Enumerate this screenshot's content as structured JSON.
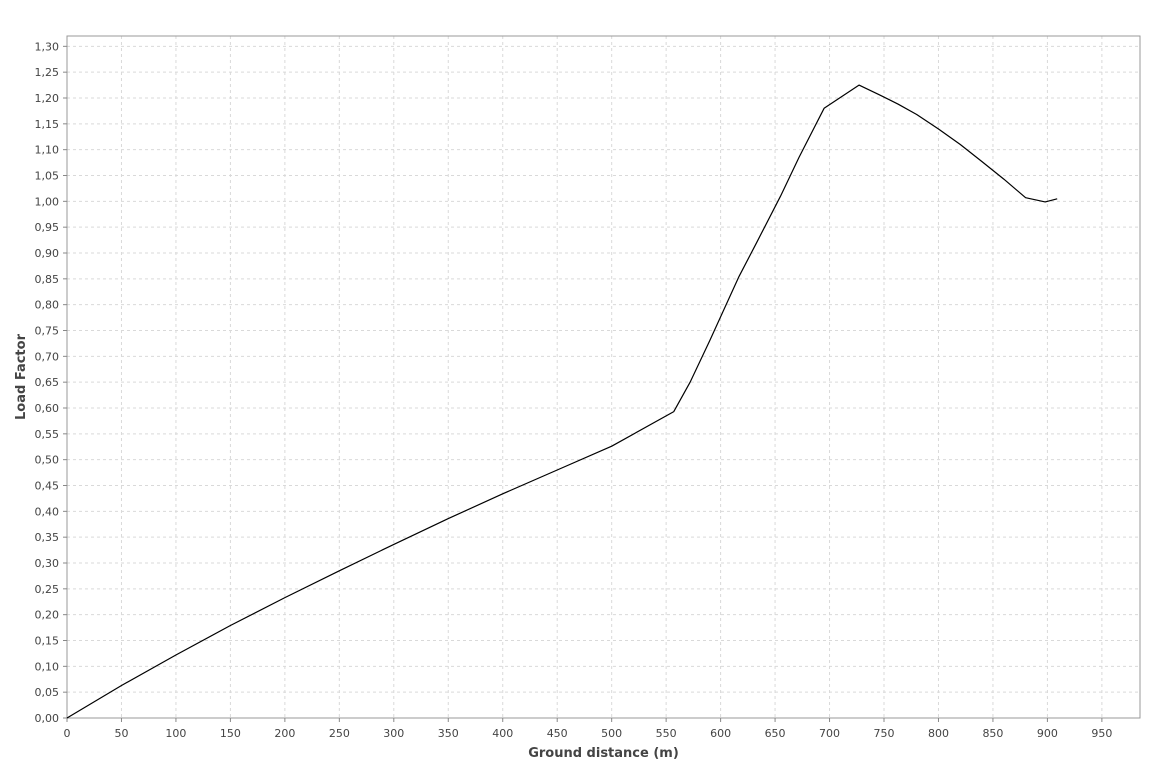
{
  "chart_data": {
    "type": "line",
    "title": "",
    "xlabel": "Ground distance (m)",
    "ylabel": "Load Factor",
    "xlim": [
      0,
      985
    ],
    "ylim": [
      0,
      1.32
    ],
    "grid": true,
    "x_ticks": [
      "0",
      "50",
      "100",
      "150",
      "200",
      "250",
      "300",
      "350",
      "400",
      "450",
      "500",
      "550",
      "600",
      "650",
      "700",
      "750",
      "800",
      "850",
      "900",
      "950"
    ],
    "y_ticks": [
      "0,00",
      "0,05",
      "0,10",
      "0,15",
      "0,20",
      "0,25",
      "0,30",
      "0,35",
      "0,40",
      "0,45",
      "0,50",
      "0,55",
      "0,60",
      "0,65",
      "0,70",
      "0,75",
      "0,80",
      "0,85",
      "0,90",
      "0,95",
      "1,00",
      "1,05",
      "1,10",
      "1,15",
      "1,20",
      "1,25",
      "1,30"
    ],
    "series": [
      {
        "color": "#000000",
        "x": [
          0,
          50,
          100,
          150,
          200,
          250,
          300,
          350,
          400,
          450,
          500,
          557,
          572,
          590,
          605,
          617,
          633,
          655,
          672,
          695,
          727,
          745,
          763,
          780,
          800,
          820,
          840,
          860,
          880,
          898,
          909
        ],
        "y": [
          0.0,
          0.063,
          0.122,
          0.179,
          0.233,
          0.285,
          0.336,
          0.386,
          0.434,
          0.48,
          0.526,
          0.593,
          0.65,
          0.73,
          0.8,
          0.855,
          0.92,
          1.01,
          1.085,
          1.18,
          1.225,
          1.207,
          1.188,
          1.168,
          1.14,
          1.11,
          1.077,
          1.043,
          1.007,
          0.999,
          1.005
        ]
      }
    ]
  }
}
